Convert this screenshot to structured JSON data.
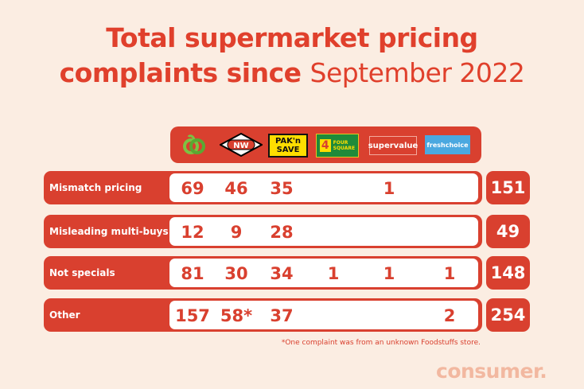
{
  "title": {
    "line1": "Total supermarket pricing",
    "line2_bold": "complaints since",
    "line2_light": "September 2022"
  },
  "colors": {
    "background": "#fbede2",
    "accent": "#d9402f"
  },
  "chart_data": {
    "type": "table",
    "columns": [
      "Woolworths",
      "New World",
      "PAK'n SAVE",
      "Four Square",
      "SuperValue",
      "FreshChoice"
    ],
    "logo_text": {
      "nw": "NW",
      "paknsave_1": "PAK'n",
      "paknsave_2": "SAVE",
      "foursquare_num": "4",
      "foursquare_1": "FOUR",
      "foursquare_2": "SQUARE",
      "supervalue": "supervalue",
      "freshchoice": "freshchoice"
    },
    "rows": [
      {
        "label": "Mismatch pricing",
        "values": [
          "69",
          "46",
          "35",
          "",
          "1",
          ""
        ],
        "total": "151"
      },
      {
        "label": "Misleading multi-buys",
        "values": [
          "12",
          "9",
          "28",
          "",
          "",
          ""
        ],
        "total": "49"
      },
      {
        "label": "Not specials",
        "values": [
          "81",
          "30",
          "34",
          "1",
          "1",
          "1"
        ],
        "total": "148"
      },
      {
        "label": "Other",
        "values": [
          "157",
          "58*",
          "37",
          "",
          "",
          "2"
        ],
        "total": "254"
      }
    ],
    "footnote": "*One complaint was from an unknown Foodstuffs store."
  },
  "brand": "consumer."
}
